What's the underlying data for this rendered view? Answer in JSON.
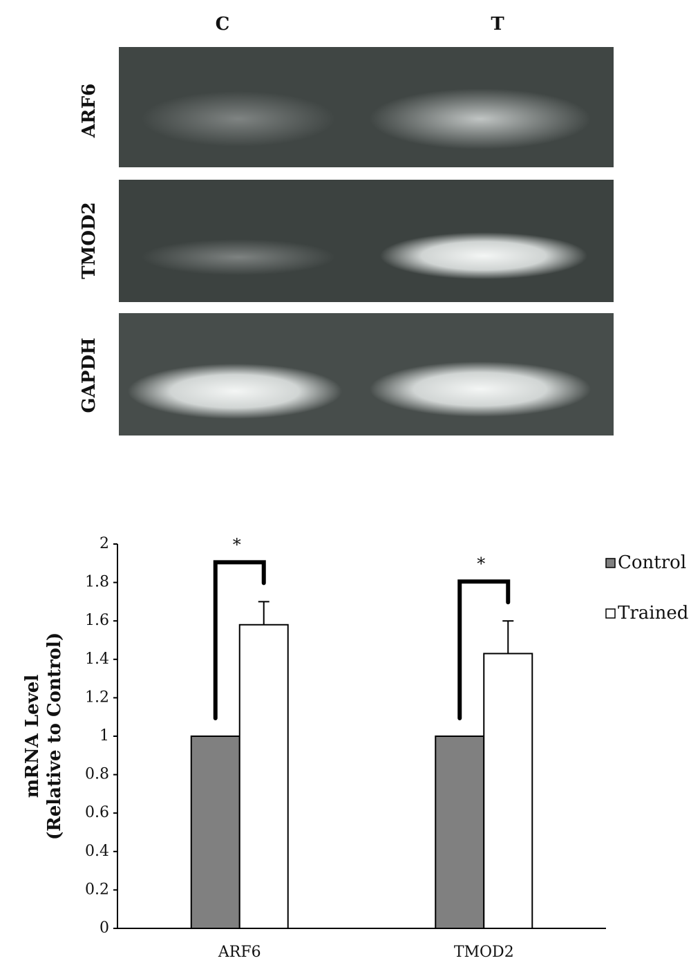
{
  "gel": {
    "lanes": [
      "C",
      "T"
    ],
    "rows": [
      "ARF6",
      "TMOD2",
      "GAPDH"
    ]
  },
  "chart_data": {
    "type": "bar",
    "ylabel": [
      "mRNA Level",
      "(Relative to Control)"
    ],
    "categories": [
      "ARF6",
      "TMOD2"
    ],
    "series": [
      {
        "name": "Control",
        "color": "#808080",
        "values": [
          1,
          1
        ]
      },
      {
        "name": "Trained",
        "color": "#ffffff",
        "values": [
          1.58,
          1.43
        ],
        "errors": [
          0.12,
          0.17
        ]
      }
    ],
    "annotations": [
      "*",
      "*"
    ],
    "ylim": [
      0,
      2
    ],
    "yticks": [
      0,
      0.2,
      0.4,
      0.6,
      0.8,
      1,
      1.2,
      1.4,
      1.6,
      1.8,
      2
    ],
    "legend": "right"
  }
}
